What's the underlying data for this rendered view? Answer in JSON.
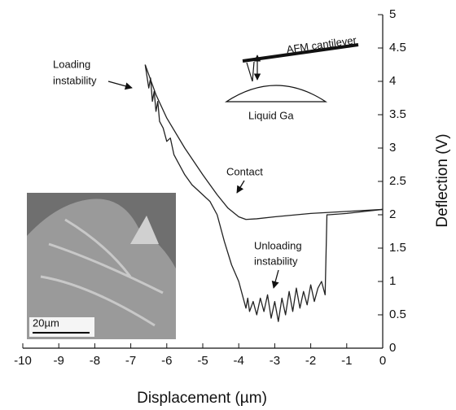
{
  "chart_data": {
    "type": "line",
    "xlabel": "Displacement (µm)",
    "ylabel": "Deflection (V)",
    "xlim": [
      -10,
      0
    ],
    "ylim": [
      0,
      5
    ],
    "xticks": [
      -10,
      -9,
      -8,
      -7,
      -6,
      -5,
      -4,
      -3,
      -2,
      -1,
      0
    ],
    "yticks": [
      0,
      0.5,
      1,
      1.5,
      2,
      2.5,
      3,
      3.5,
      4,
      4.5,
      5
    ],
    "series": [
      {
        "color": "#222222",
        "x": [
          0,
          -1,
          -2,
          -3,
          -3.5,
          -3.8,
          -4.0,
          -4.3,
          -4.6,
          -5.0,
          -5.5,
          -6.0,
          -6.3,
          -6.5,
          -6.6
        ],
        "values": [
          2.08,
          2.05,
          2.02,
          1.97,
          1.94,
          1.93,
          1.97,
          2.1,
          2.3,
          2.6,
          3.0,
          3.45,
          3.8,
          4.1,
          4.25
        ]
      },
      {
        "color": "#222222",
        "x": [
          -6.6,
          -6.5,
          -6.45,
          -6.4,
          -6.35,
          -6.3,
          -6.25,
          -6.2,
          -6.1,
          -6.0,
          -5.9,
          -5.8,
          -5.7,
          -5.5,
          -5.3,
          -5.0,
          -4.8,
          -4.6,
          -4.4,
          -4.2,
          -4.0,
          -3.9,
          -3.8,
          -3.75,
          -3.7,
          -3.6,
          -3.5,
          -3.4,
          -3.3,
          -3.2,
          -3.1,
          -3.0,
          -2.9,
          -2.8,
          -2.7,
          -2.6,
          -2.5,
          -2.4,
          -2.3,
          -2.2,
          -2.1,
          -2.0,
          -1.9,
          -1.8,
          -1.7,
          -1.6,
          -1.55,
          -1.5,
          -1.0,
          -0.5,
          0
        ],
        "values": [
          4.25,
          3.9,
          4.05,
          3.7,
          3.85,
          3.55,
          3.7,
          3.4,
          3.3,
          3.1,
          3.15,
          2.9,
          2.8,
          2.6,
          2.45,
          2.3,
          2.2,
          2.0,
          1.6,
          1.25,
          1.0,
          0.8,
          0.6,
          0.75,
          0.55,
          0.7,
          0.5,
          0.75,
          0.55,
          0.8,
          0.45,
          0.7,
          0.4,
          0.75,
          0.5,
          0.85,
          0.55,
          0.9,
          0.6,
          0.85,
          0.65,
          0.95,
          0.7,
          0.9,
          1.0,
          0.8,
          2.0,
          2.0,
          2.02,
          2.05,
          2.08
        ]
      }
    ],
    "annotations": {
      "loading": [
        "Loading",
        "instability"
      ],
      "cantilever": "AFM cantilever",
      "gallium": "Liquid Ga",
      "contact": "Contact",
      "unloading": [
        "Unloading",
        "instability"
      ],
      "scale_bar": "20µm"
    }
  }
}
